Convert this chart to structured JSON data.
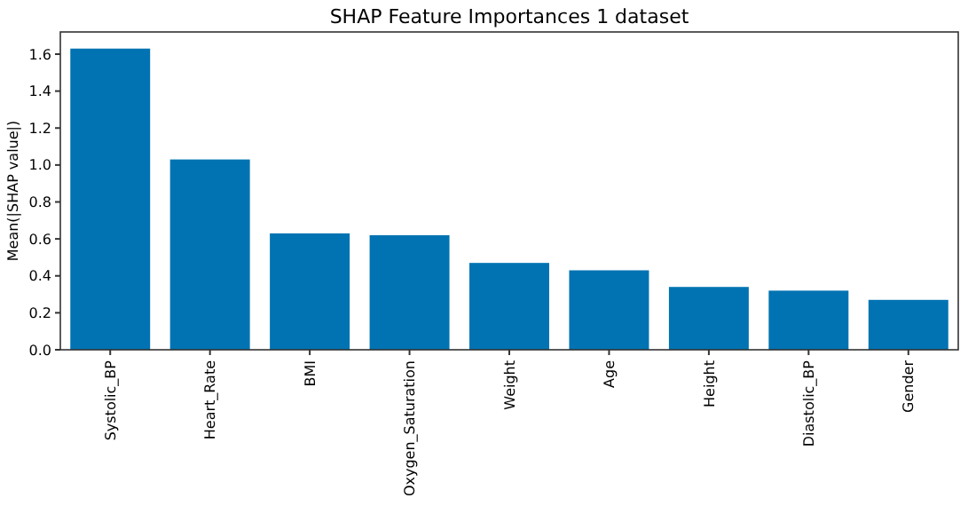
{
  "chart_data": {
    "type": "bar",
    "title": "SHAP Feature Importances 1 dataset",
    "ylabel": "Mean(|SHAP value|)",
    "categories": [
      "Systolic_BP",
      "Heart_Rate",
      "BMI",
      "Oxygen_Saturation",
      "Weight",
      "Age",
      "Height",
      "Diastolic_BP",
      "Gender"
    ],
    "values": [
      1.63,
      1.03,
      0.63,
      0.62,
      0.47,
      0.43,
      0.34,
      0.32,
      0.27
    ],
    "color": "#0173b2",
    "ylim": [
      0,
      1.72
    ],
    "yticks": [
      {
        "value": 0,
        "label": "0.0"
      },
      {
        "value": 0.2,
        "label": "0.2"
      },
      {
        "value": 0.4,
        "label": "0.4"
      },
      {
        "value": 0.6,
        "label": "0.6"
      },
      {
        "value": 0.8,
        "label": "0.8"
      },
      {
        "value": 1,
        "label": "1.0"
      },
      {
        "value": 1.2,
        "label": "1.2"
      },
      {
        "value": 1.4,
        "label": "1.4"
      },
      {
        "value": 1.6,
        "label": "1.6"
      }
    ]
  }
}
